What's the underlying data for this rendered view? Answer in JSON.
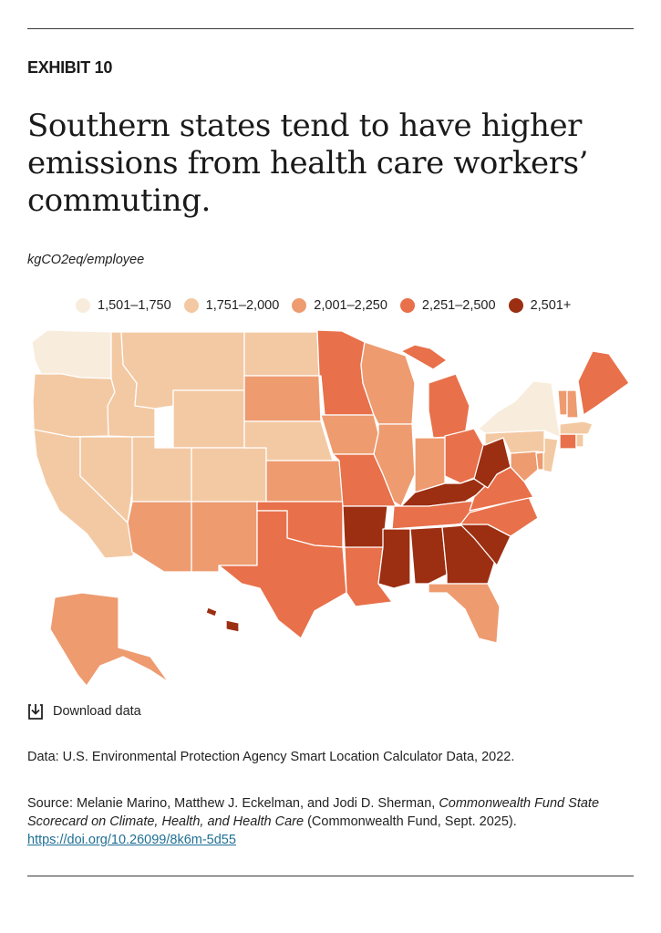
{
  "header": {
    "exhibit": "EXHIBIT 10",
    "title": "Southern states tend to have higher emissions from health care workers’ commuting.",
    "unit": "kgCO2eq/employee"
  },
  "legend": [
    {
      "label": "1,501–1,750",
      "color": "#f8ecdc"
    },
    {
      "label": "1,751–2,000",
      "color": "#f3c9a3"
    },
    {
      "label": "2,001–2,250",
      "color": "#ee9b70"
    },
    {
      "label": "2,251–2,500",
      "color": "#e8704a"
    },
    {
      "label": "2,501+",
      "color": "#9c2e11"
    }
  ],
  "map": {
    "state_categories": {
      "WA": 1,
      "OR": 2,
      "CA": 2,
      "NV": 2,
      "ID": 2,
      "MT": 2,
      "WY": 2,
      "UT": 2,
      "CO": 2,
      "AZ": 3,
      "NM": 3,
      "ND": 2,
      "SD": 3,
      "NE": 2,
      "KS": 3,
      "OK": 4,
      "TX": 4,
      "MN": 4,
      "IA": 3,
      "MO": 4,
      "AR": 5,
      "LA": 4,
      "WI": 3,
      "IL": 3,
      "MI": 4,
      "IN": 3,
      "OH": 4,
      "KY": 5,
      "TN": 4,
      "MS": 5,
      "AL": 5,
      "GA": 5,
      "FL": 3,
      "SC": 5,
      "NC": 4,
      "VA": 4,
      "WV": 5,
      "MD": 3,
      "DE": 3,
      "NJ": 2,
      "PA": 2,
      "NY": 1,
      "CT": 4,
      "RI": 2,
      "MA": 2,
      "VT": 3,
      "NH": 3,
      "ME": 4,
      "AK": 3,
      "HI": 5
    }
  },
  "footer": {
    "download_label": "Download data",
    "data_note": "Data: U.S. Environmental Protection Agency Smart Location Calculator Data, 2022.",
    "source_prefix": "Source: Melanie Marino, Matthew J. Eckelman, and Jodi D. Sherman, ",
    "source_title": "Commonwealth Fund State Scorecard on Climate, Health, and Health Care",
    "source_suffix": " (Commonwealth Fund, Sept. 2025).",
    "source_link": "https://doi.org/10.26099/8k6m-5d55"
  }
}
